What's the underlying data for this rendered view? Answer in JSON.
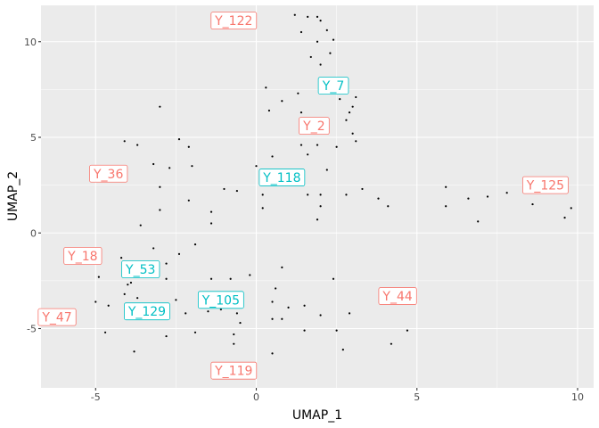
{
  "chart_data": {
    "type": "scatter",
    "xlabel": "UMAP_1",
    "ylabel": "UMAP_2",
    "xlim": [
      -6.7,
      10.5
    ],
    "ylim": [
      -8.1,
      11.9
    ],
    "x_ticks": [
      -5,
      0,
      5,
      10
    ],
    "y_ticks": [
      -5,
      0,
      5,
      10
    ],
    "x_tick_labels": [
      "-5",
      "0",
      "5",
      "10"
    ],
    "y_tick_labels": [
      "-5",
      "0",
      "5",
      "10"
    ],
    "grid": true,
    "legend": "none",
    "colors": {
      "group_a": "#F8766D",
      "group_b": "#00BFC4"
    },
    "points": [
      [
        1.2,
        11.4
      ],
      [
        1.6,
        11.3
      ],
      [
        1.9,
        11.3
      ],
      [
        2.0,
        11.1
      ],
      [
        2.2,
        10.6
      ],
      [
        2.4,
        10.1
      ],
      [
        1.4,
        10.5
      ],
      [
        1.9,
        10.0
      ],
      [
        2.3,
        9.4
      ],
      [
        1.7,
        9.2
      ],
      [
        2.0,
        8.8
      ],
      [
        0.3,
        7.6
      ],
      [
        0.8,
        6.9
      ],
      [
        1.3,
        7.3
      ],
      [
        2.6,
        7.0
      ],
      [
        3.1,
        7.1
      ],
      [
        3.0,
        6.6
      ],
      [
        2.9,
        6.3
      ],
      [
        1.4,
        6.3
      ],
      [
        0.4,
        6.4
      ],
      [
        2.8,
        5.9
      ],
      [
        3.0,
        5.2
      ],
      [
        3.1,
        4.8
      ],
      [
        2.5,
        4.5
      ],
      [
        1.4,
        4.6
      ],
      [
        1.9,
        4.6
      ],
      [
        1.6,
        4.1
      ],
      [
        0.5,
        4.0
      ],
      [
        -3.0,
        6.6
      ],
      [
        -4.1,
        4.8
      ],
      [
        -3.7,
        4.6
      ],
      [
        -2.4,
        4.9
      ],
      [
        -2.1,
        4.5
      ],
      [
        -3.2,
        3.6
      ],
      [
        -2.7,
        3.4
      ],
      [
        -2.0,
        3.5
      ],
      [
        0.0,
        3.5
      ],
      [
        2.2,
        3.3
      ],
      [
        -3.0,
        2.4
      ],
      [
        -1.0,
        2.3
      ],
      [
        -0.6,
        2.2
      ],
      [
        0.2,
        2.0
      ],
      [
        1.6,
        2.0
      ],
      [
        2.0,
        2.0
      ],
      [
        2.8,
        2.0
      ],
      [
        3.3,
        2.3
      ],
      [
        3.8,
        1.8
      ],
      [
        4.1,
        1.4
      ],
      [
        -2.1,
        1.7
      ],
      [
        -3.0,
        1.2
      ],
      [
        -1.4,
        1.1
      ],
      [
        0.2,
        1.3
      ],
      [
        2.0,
        1.4
      ],
      [
        -1.4,
        0.5
      ],
      [
        -3.6,
        0.4
      ],
      [
        1.9,
        0.7
      ],
      [
        5.9,
        2.4
      ],
      [
        5.9,
        1.4
      ],
      [
        6.6,
        1.8
      ],
      [
        7.2,
        1.9
      ],
      [
        7.8,
        2.1
      ],
      [
        8.6,
        1.5
      ],
      [
        6.9,
        0.6
      ],
      [
        9.6,
        0.8
      ],
      [
        9.8,
        1.3
      ],
      [
        -4.2,
        -1.3
      ],
      [
        -3.2,
        -0.8
      ],
      [
        -1.9,
        -0.6
      ],
      [
        -2.4,
        -1.1
      ],
      [
        -2.8,
        -1.6
      ],
      [
        -4.0,
        -1.6
      ],
      [
        0.8,
        -1.8
      ],
      [
        -4.9,
        -2.3
      ],
      [
        -3.9,
        -2.6
      ],
      [
        -2.8,
        -2.4
      ],
      [
        -1.4,
        -2.4
      ],
      [
        -0.8,
        -2.4
      ],
      [
        -0.2,
        -2.2
      ],
      [
        -4.0,
        -2.7
      ],
      [
        -4.1,
        -3.2
      ],
      [
        -3.7,
        -3.4
      ],
      [
        -2.5,
        -3.5
      ],
      [
        -1.1,
        -3.2
      ],
      [
        0.6,
        -2.9
      ],
      [
        2.4,
        -2.4
      ],
      [
        -5.0,
        -3.6
      ],
      [
        -4.6,
        -3.8
      ],
      [
        -3.1,
        -4.0
      ],
      [
        -2.2,
        -4.2
      ],
      [
        -1.5,
        -4.1
      ],
      [
        -1.1,
        -4.0
      ],
      [
        -0.6,
        -4.2
      ],
      [
        -0.5,
        -3.6
      ],
      [
        0.5,
        -3.6
      ],
      [
        1.0,
        -3.9
      ],
      [
        1.5,
        -3.8
      ],
      [
        2.0,
        -4.3
      ],
      [
        2.9,
        -4.2
      ],
      [
        0.8,
        -4.5
      ],
      [
        0.5,
        -4.5
      ],
      [
        -0.5,
        -4.7
      ],
      [
        1.5,
        -5.1
      ],
      [
        2.5,
        -5.1
      ],
      [
        -4.7,
        -5.2
      ],
      [
        -2.8,
        -5.4
      ],
      [
        -1.9,
        -5.2
      ],
      [
        -0.7,
        -5.3
      ],
      [
        -0.7,
        -5.8
      ],
      [
        2.7,
        -6.1
      ],
      [
        4.2,
        -5.8
      ],
      [
        4.7,
        -5.1
      ],
      [
        -3.8,
        -6.2
      ],
      [
        0.5,
        -6.3
      ]
    ],
    "annotations": [
      {
        "text": "Y_122",
        "x": -0.7,
        "y": 11.1,
        "group": "group_a"
      },
      {
        "text": "Y_7",
        "x": 2.4,
        "y": 7.7,
        "group": "group_b"
      },
      {
        "text": "Y_2",
        "x": 1.8,
        "y": 5.6,
        "group": "group_a"
      },
      {
        "text": "Y_36",
        "x": -4.6,
        "y": 3.1,
        "group": "group_a"
      },
      {
        "text": "Y_118",
        "x": 0.8,
        "y": 2.9,
        "group": "group_b"
      },
      {
        "text": "Y_125",
        "x": 9.0,
        "y": 2.5,
        "group": "group_a"
      },
      {
        "text": "Y_18",
        "x": -5.4,
        "y": -1.2,
        "group": "group_a"
      },
      {
        "text": "Y_53",
        "x": -3.6,
        "y": -1.9,
        "group": "group_b"
      },
      {
        "text": "Y_44",
        "x": 4.4,
        "y": -3.3,
        "group": "group_a"
      },
      {
        "text": "Y_105",
        "x": -1.1,
        "y": -3.5,
        "group": "group_b"
      },
      {
        "text": "Y_129",
        "x": -3.4,
        "y": -4.1,
        "group": "group_b"
      },
      {
        "text": "Y_47",
        "x": -6.2,
        "y": -4.4,
        "group": "group_a"
      },
      {
        "text": "Y_119",
        "x": -0.7,
        "y": -7.2,
        "group": "group_a"
      }
    ]
  }
}
